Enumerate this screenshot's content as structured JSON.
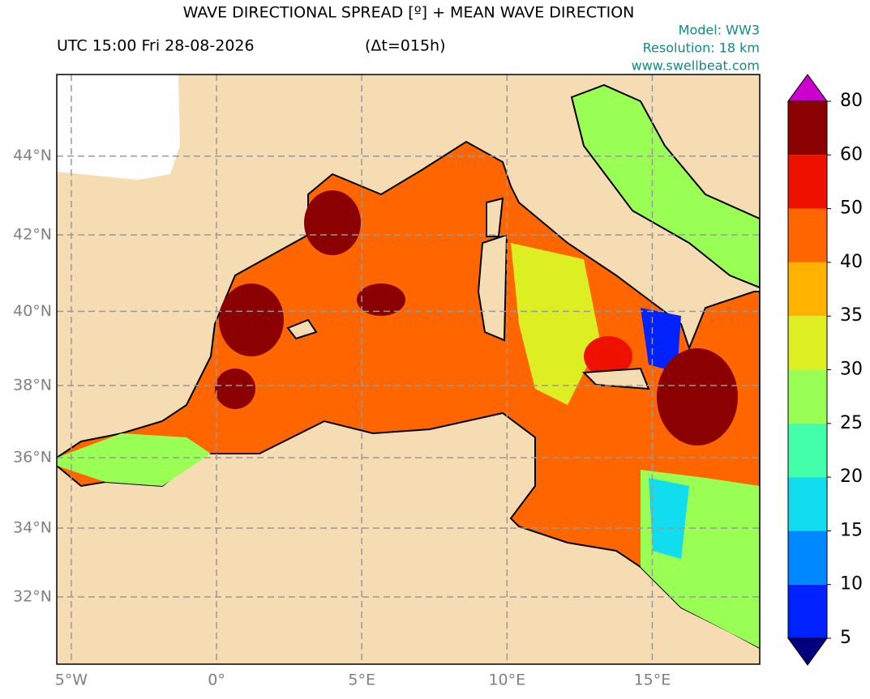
{
  "chart_data": {
    "type": "contour-map",
    "title": "WAVE DIRECTIONAL SPREAD [º] + MEAN WAVE DIRECTION",
    "subtitle": "UTC 15:00 Fri 28-08-2026",
    "lead_time": "(Δt=015h)",
    "annotations": [
      "Model: WW3",
      "Resolution: 18 km",
      "www.swellbeat.com"
    ],
    "projection": "mercator",
    "xlim": [
      -5.5,
      18.7
    ],
    "ylim": [
      30,
      46
    ],
    "xticks": [
      {
        "value": -5,
        "label": "5°W"
      },
      {
        "value": 0,
        "label": "0°"
      },
      {
        "value": 5,
        "label": "5°E"
      },
      {
        "value": 10,
        "label": "10°E"
      },
      {
        "value": 15,
        "label": "15°E"
      }
    ],
    "yticks": [
      {
        "value": 32,
        "label": "32°N"
      },
      {
        "value": 34,
        "label": "34°N"
      },
      {
        "value": 36,
        "label": "36°N"
      },
      {
        "value": 38,
        "label": "38°N"
      },
      {
        "value": 40,
        "label": "40°N"
      },
      {
        "value": 42,
        "label": "42°N"
      },
      {
        "value": 44,
        "label": "44°N"
      }
    ],
    "grid": true,
    "land_color": "#f5dcb3",
    "colorbar": {
      "ticks": [
        5,
        10,
        15,
        20,
        25,
        30,
        35,
        40,
        50,
        60,
        80
      ],
      "colors": [
        "#0022ff",
        "#0088ff",
        "#11ddee",
        "#44ffaa",
        "#99ff55",
        "#ddee22",
        "#ffb300",
        "#ff6600",
        "#ee1100",
        "#8b0000"
      ],
      "extend_min_color": "#00007f",
      "extend_max_color": "#cc00cc"
    }
  }
}
